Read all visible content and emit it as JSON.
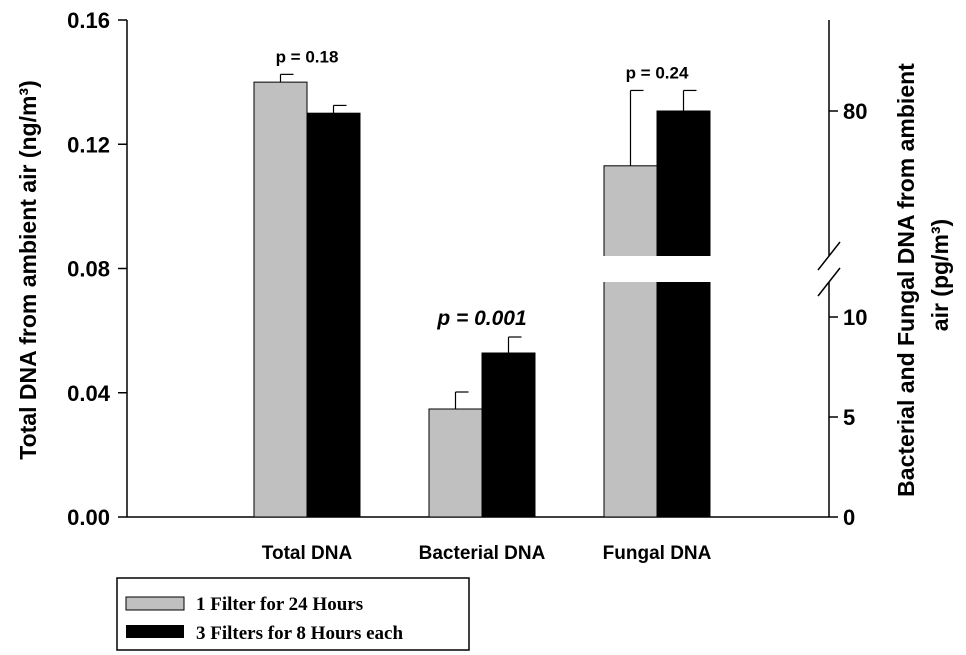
{
  "chart_data": {
    "type": "bar",
    "categories": [
      "Total DNA",
      "Bacterial DNA",
      "Fungal DNA"
    ],
    "series": [
      {
        "name": "1 Filter for 24 Hours",
        "color": "#c0c0c0",
        "values": [
          0.14,
          5.4,
          72
        ],
        "errors": [
          0.0025,
          0.85,
          11
        ]
      },
      {
        "name": "3 Filters for 8 Hours each",
        "color": "#000000",
        "values": [
          0.13,
          8.2,
          80
        ],
        "errors": [
          0.0025,
          0.8,
          3
        ]
      }
    ],
    "category_axis": [
      "left",
      "right",
      "right"
    ],
    "annotations": [
      "p = 0.18",
      "p = 0.001",
      "p = 0.24"
    ],
    "annotation_italic": [
      false,
      true,
      false
    ],
    "left_axis": {
      "label": "Total DNA from ambient air (ng/m³)",
      "ylim": [
        0,
        0.16
      ],
      "ticks": [
        "0.00",
        "0.04",
        "0.08",
        "0.12",
        "0.16"
      ]
    },
    "right_axis": {
      "label_line1": "Bacterial and Fungal DNA from ambient",
      "label_line2": "air (pg/m³)",
      "lower_ticks": [
        "0",
        "5",
        "10"
      ],
      "upper_ticks": [
        "80"
      ],
      "break": true
    },
    "legend_placement": "bottom-left"
  }
}
